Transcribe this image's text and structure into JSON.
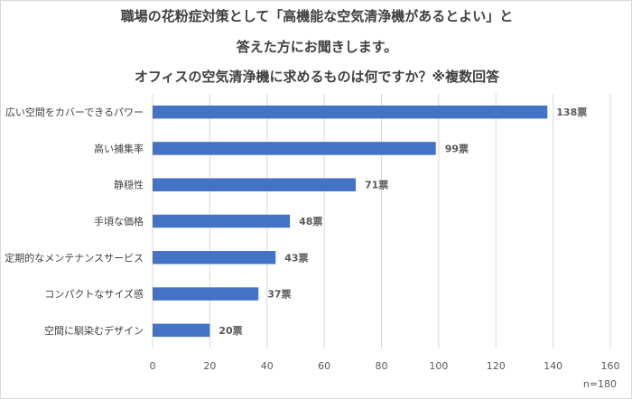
{
  "title": {
    "line1": "職場の花粉症対策として「高機能な空気清浄機があるとよい」と",
    "line2": "答えた方にお聞きします。",
    "line3": "オフィスの空気清浄機に求めるものは何ですか？※複数回答"
  },
  "note": "n=180",
  "chart_data": {
    "type": "bar",
    "orientation": "horizontal",
    "categories": [
      "広い空間をカバーできるパワー",
      "高い捕集率",
      "静穏性",
      "手頃な価格",
      "定期的なメンテナンスサービス",
      "コンパクトなサイズ感",
      "空間に馴染むデザイン"
    ],
    "values": [
      138,
      99,
      71,
      48,
      43,
      37,
      20
    ],
    "value_suffix": "票",
    "xlim": [
      0,
      160
    ],
    "xticks": [
      0,
      20,
      40,
      60,
      80,
      100,
      120,
      140,
      160
    ],
    "grid": true,
    "bar_color": "#4472c4"
  }
}
